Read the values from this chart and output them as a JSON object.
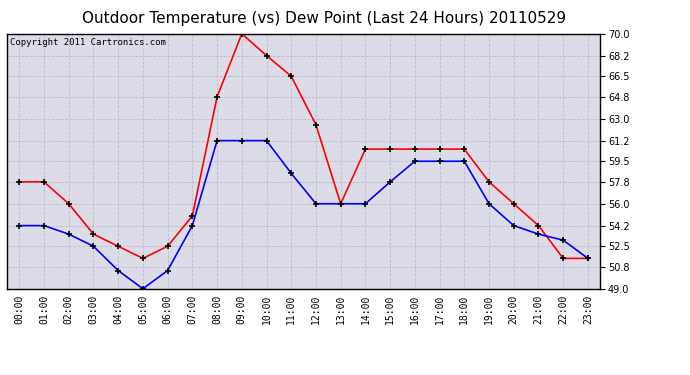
{
  "title": "Outdoor Temperature (vs) Dew Point (Last 24 Hours) 20110529",
  "copyright_text": "Copyright 2011 Cartronics.com",
  "x_labels": [
    "00:00",
    "01:00",
    "02:00",
    "03:00",
    "04:00",
    "05:00",
    "06:00",
    "07:00",
    "08:00",
    "09:00",
    "10:00",
    "11:00",
    "12:00",
    "13:00",
    "14:00",
    "15:00",
    "16:00",
    "17:00",
    "18:00",
    "19:00",
    "20:00",
    "21:00",
    "22:00",
    "23:00"
  ],
  "temp_red": [
    57.8,
    57.8,
    56.0,
    53.5,
    52.5,
    51.5,
    52.5,
    55.0,
    64.8,
    70.0,
    68.2,
    66.5,
    62.5,
    56.0,
    60.5,
    60.5,
    60.5,
    60.5,
    60.5,
    57.8,
    56.0,
    54.2,
    51.5,
    51.5
  ],
  "dewpoint_blue": [
    54.2,
    54.2,
    53.5,
    52.5,
    50.5,
    49.0,
    50.5,
    54.2,
    61.2,
    61.2,
    61.2,
    58.5,
    56.0,
    56.0,
    56.0,
    57.8,
    59.5,
    59.5,
    59.5,
    56.0,
    54.2,
    53.5,
    53.0,
    51.5
  ],
  "ylim": [
    49.0,
    70.0
  ],
  "yticks": [
    49.0,
    50.8,
    52.5,
    54.2,
    56.0,
    57.8,
    59.5,
    61.2,
    63.0,
    64.8,
    66.5,
    68.2,
    70.0
  ],
  "line_color_red": "#ff0000",
  "line_color_blue": "#0000ff",
  "bg_color": "#dcdce8",
  "grid_color": "#bbbbcc",
  "title_fontsize": 11,
  "axis_fontsize": 7,
  "copyright_fontsize": 6.5
}
